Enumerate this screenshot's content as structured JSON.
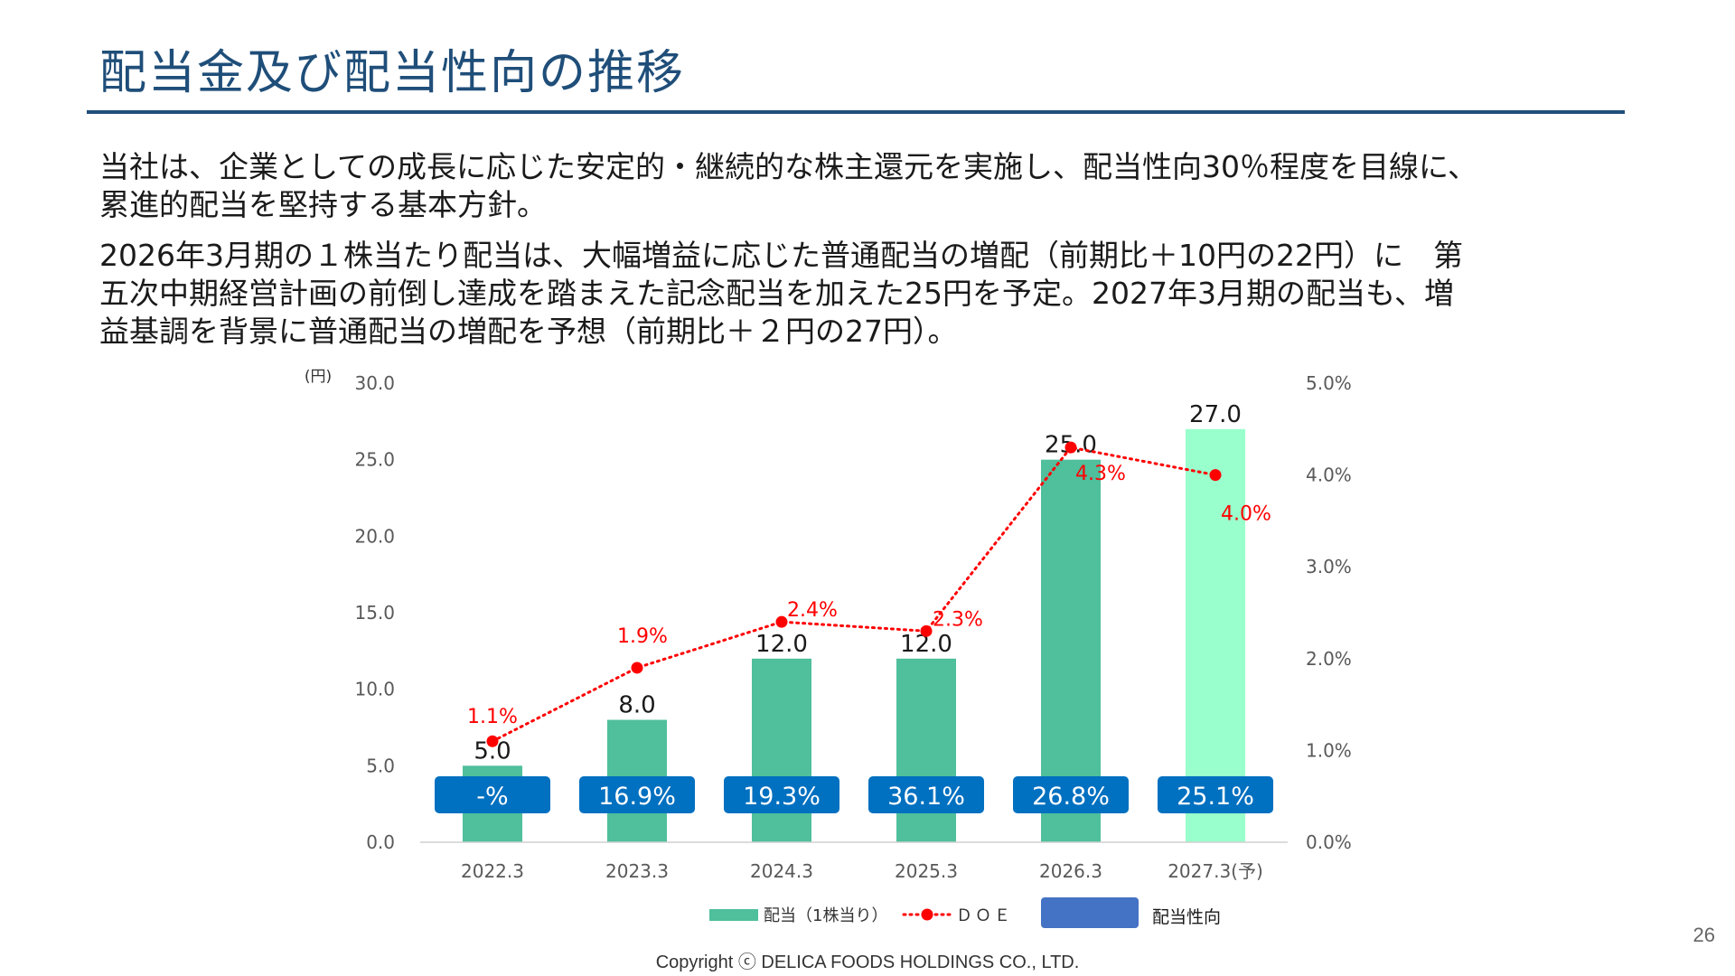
{
  "title": "配当金及び配当性向の推移",
  "paragraph_1": "当社は、企業としての成長に応じた安定的・継続的な株主還元を実施し、配当性向30％程度を目線に、\n累進的配当を堅持する基本方針。",
  "paragraph_2": "2026年3月期の１株当たり配当は、大幅増益に応じた普通配当の増配（前期比＋10円の22円）に　第\n五次中期経営計画の前倒し達成を踏まえた記念配当を加えた25円を予定。2027年3月期の配当も、増\n益基調を背景に普通配当の増配を予想（前期比＋２円の27円）。",
  "copyright": "Copyright ⓒ DELICA FOODS HOLDINGS CO., LTD.",
  "page_number": "26",
  "colors": {
    "title": "#1f4e79",
    "bar": "#4fbf9c",
    "bar_forecast": "#99ffcc",
    "doe": "#ff0000",
    "payout_box": "#0070c0",
    "legend_payout": "#4472c4"
  },
  "chart_data": {
    "type": "bar",
    "categories": [
      "2022.3",
      "2023.3",
      "2024.3",
      "2025.3",
      "2026.3",
      "2027.3(予)"
    ],
    "y_unit_label": "(円)",
    "ylim": [
      0,
      30
    ],
    "y_ticks": [
      "0.0",
      "5.0",
      "10.0",
      "15.0",
      "20.0",
      "25.0",
      "30.0"
    ],
    "y2lim": [
      0,
      5
    ],
    "y2_ticks": [
      "0.0%",
      "1.0%",
      "2.0%",
      "3.0%",
      "4.0%",
      "5.0%"
    ],
    "grid": false,
    "legend_position": "bottom",
    "series": [
      {
        "name": "配当（1株当り）",
        "kind": "bar",
        "values": [
          5.0,
          8.0,
          12.0,
          12.0,
          25.0,
          27.0
        ],
        "labels": [
          "5.0",
          "8.0",
          "12.0",
          "12.0",
          "25.0",
          "27.0"
        ],
        "forecast_index": 5
      },
      {
        "name": "ＤＯＥ",
        "kind": "line",
        "axis": "right",
        "values": [
          1.1,
          1.9,
          2.4,
          2.3,
          4.3,
          4.0
        ],
        "labels": [
          "1.1%",
          "1.9%",
          "2.4%",
          "2.3%",
          "4.3%",
          "4.0%"
        ]
      },
      {
        "name": "配当性向",
        "kind": "box_label",
        "labels": [
          "-%",
          "16.9%",
          "19.3%",
          "36.1%",
          "26.8%",
          "25.1%"
        ]
      }
    ]
  }
}
